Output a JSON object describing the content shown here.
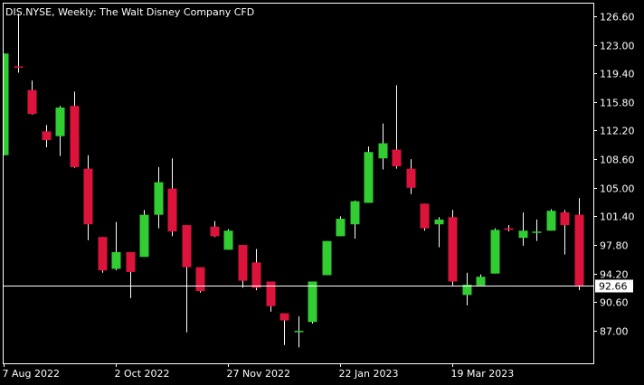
{
  "header": {
    "title": "DIS.NYSE, Weekly:  The Walt Disney Company CFD"
  },
  "colors": {
    "background": "#000000",
    "frame": "#ffffff",
    "bull": "#32cd32",
    "bear": "#dc143c",
    "wick": "#ffffff",
    "price_line": "#ffffff"
  },
  "chart_data": {
    "type": "candlestick",
    "title": "DIS.NYSE, Weekly:  The Walt Disney Company CFD",
    "ylim": [
      82.9,
      128.3
    ],
    "y_ticks": [
      "126.60",
      "123.00",
      "119.40",
      "115.80",
      "112.20",
      "108.60",
      "105.00",
      "101.40",
      "97.80",
      "94.20",
      "90.60",
      "87.00"
    ],
    "x_tick_labels": [
      {
        "label": "7 Aug 2022",
        "index": 0
      },
      {
        "label": "2 Oct 2022",
        "index": 8
      },
      {
        "label": "27 Nov 2022",
        "index": 16
      },
      {
        "label": "22 Jan 2023",
        "index": 24
      },
      {
        "label": "19 Mar 2023",
        "index": 32
      }
    ],
    "current_price": "92.66",
    "candles": [
      {
        "o": 109.1,
        "h": 121.9,
        "l": 109.1,
        "c": 121.9
      },
      {
        "o": 120.2,
        "h": 126.9,
        "l": 119.5,
        "c": 120.1
      },
      {
        "o": 117.3,
        "h": 118.5,
        "l": 114.2,
        "c": 114.3
      },
      {
        "o": 112.1,
        "h": 112.9,
        "l": 110.1,
        "c": 111.0
      },
      {
        "o": 111.5,
        "h": 115.3,
        "l": 109.0,
        "c": 115.1
      },
      {
        "o": 115.3,
        "h": 117.1,
        "l": 107.5,
        "c": 107.6
      },
      {
        "o": 107.4,
        "h": 109.1,
        "l": 98.4,
        "c": 100.4
      },
      {
        "o": 98.8,
        "h": 98.8,
        "l": 94.3,
        "c": 94.6
      },
      {
        "o": 94.8,
        "h": 100.7,
        "l": 94.6,
        "c": 96.9
      },
      {
        "o": 96.9,
        "h": 96.9,
        "l": 91.1,
        "c": 94.4
      },
      {
        "o": 96.3,
        "h": 102.2,
        "l": 96.3,
        "c": 101.6
      },
      {
        "o": 101.6,
        "h": 107.6,
        "l": 99.9,
        "c": 105.7
      },
      {
        "o": 104.9,
        "h": 108.7,
        "l": 98.9,
        "c": 99.5
      },
      {
        "o": 100.3,
        "h": 100.3,
        "l": 86.8,
        "c": 95.0
      },
      {
        "o": 95.0,
        "h": 95.0,
        "l": 91.8,
        "c": 92.0
      },
      {
        "o": 100.1,
        "h": 100.8,
        "l": 98.8,
        "c": 98.9
      },
      {
        "o": 97.2,
        "h": 99.8,
        "l": 97.2,
        "c": 99.6
      },
      {
        "o": 97.8,
        "h": 97.8,
        "l": 92.4,
        "c": 93.3
      },
      {
        "o": 95.6,
        "h": 97.3,
        "l": 92.1,
        "c": 92.4
      },
      {
        "o": 93.2,
        "h": 93.2,
        "l": 89.4,
        "c": 90.1
      },
      {
        "o": 89.2,
        "h": 89.2,
        "l": 85.2,
        "c": 88.3
      },
      {
        "o": 86.9,
        "h": 88.8,
        "l": 84.9,
        "c": 86.9
      },
      {
        "o": 88.1,
        "h": 93.2,
        "l": 87.9,
        "c": 93.2
      },
      {
        "o": 94.0,
        "h": 98.3,
        "l": 94.0,
        "c": 98.3
      },
      {
        "o": 98.9,
        "h": 101.4,
        "l": 98.9,
        "c": 101.1
      },
      {
        "o": 100.4,
        "h": 103.4,
        "l": 98.6,
        "c": 103.3
      },
      {
        "o": 103.1,
        "h": 110.2,
        "l": 103.1,
        "c": 109.5
      },
      {
        "o": 108.7,
        "h": 113.1,
        "l": 107.3,
        "c": 110.6
      },
      {
        "o": 109.8,
        "h": 117.9,
        "l": 107.4,
        "c": 107.7
      },
      {
        "o": 107.4,
        "h": 108.6,
        "l": 104.2,
        "c": 105.0
      },
      {
        "o": 103.0,
        "h": 103.0,
        "l": 99.6,
        "c": 99.9
      },
      {
        "o": 100.4,
        "h": 101.3,
        "l": 97.5,
        "c": 101.0
      },
      {
        "o": 101.3,
        "h": 102.2,
        "l": 92.7,
        "c": 93.2
      },
      {
        "o": 91.5,
        "h": 94.3,
        "l": 90.2,
        "c": 92.8
      },
      {
        "o": 92.7,
        "h": 94.1,
        "l": 92.7,
        "c": 93.8
      },
      {
        "o": 94.2,
        "h": 99.9,
        "l": 94.2,
        "c": 99.7
      },
      {
        "o": 99.9,
        "h": 100.3,
        "l": 99.5,
        "c": 99.7
      },
      {
        "o": 98.7,
        "h": 101.9,
        "l": 97.7,
        "c": 99.6
      },
      {
        "o": 99.3,
        "h": 101.0,
        "l": 98.3,
        "c": 99.4
      },
      {
        "o": 99.6,
        "h": 102.3,
        "l": 99.6,
        "c": 102.1
      },
      {
        "o": 101.9,
        "h": 102.2,
        "l": 96.6,
        "c": 100.3
      },
      {
        "o": 101.6,
        "h": 103.7,
        "l": 92.1,
        "c": 92.7
      }
    ]
  }
}
